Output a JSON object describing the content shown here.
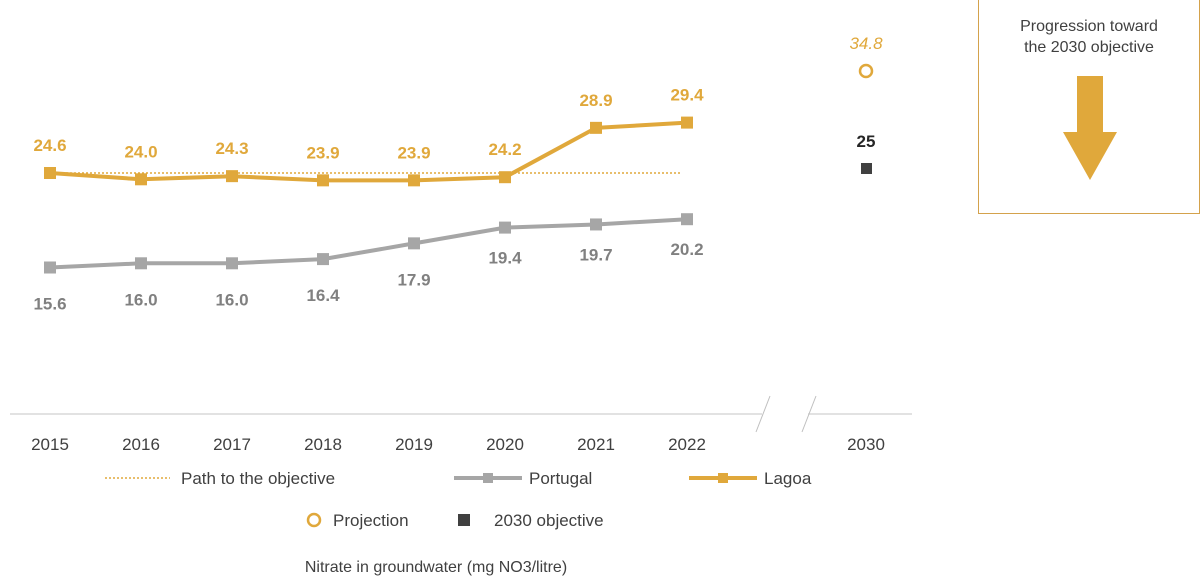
{
  "chart_data": {
    "type": "line",
    "x": [
      "2015",
      "2016",
      "2017",
      "2018",
      "2019",
      "2020",
      "2021",
      "2022"
    ],
    "projection_x": "2030",
    "series": [
      {
        "name": "Lagoa",
        "color": "#E0A83B",
        "values": [
          24.6,
          24.0,
          24.3,
          23.9,
          23.9,
          24.2,
          28.9,
          29.4
        ],
        "labels": [
          "24.6",
          "24.0",
          "24.3",
          "23.9",
          "23.9",
          "24.2",
          "28.9",
          "29.4"
        ]
      },
      {
        "name": "Portugal",
        "color": "#A6A6A6",
        "values": [
          15.6,
          16.0,
          16.0,
          16.4,
          17.9,
          19.4,
          19.7,
          20.2
        ],
        "labels": [
          "15.6",
          "16.0",
          "16.0",
          "16.4",
          "17.9",
          "19.4",
          "19.7",
          "20.2"
        ]
      },
      {
        "name": "Path to the objective",
        "color": "#E0A83B",
        "values": [
          24.6,
          24.6,
          24.6,
          24.6,
          24.6,
          24.6,
          24.6,
          24.6
        ]
      }
    ],
    "projection": {
      "name": "Projection",
      "x": "2030",
      "value": 34.8,
      "label": "34.8",
      "color": "#E0A83B"
    },
    "objective": {
      "name": "2030 objective",
      "x": "2030",
      "value": 25,
      "label": "25",
      "color": "#404040"
    },
    "legend": [
      "Path to the objective",
      "Portugal",
      "Lagoa",
      "Projection",
      "2030 objective"
    ],
    "caption": "Nitrate in groundwater (mg NO3/litre)",
    "axis_break": true,
    "grid": false
  },
  "callout": {
    "text_line1": "Progression toward",
    "text_line2": "the 2030 objective",
    "arrow_color": "#E0A83B"
  }
}
